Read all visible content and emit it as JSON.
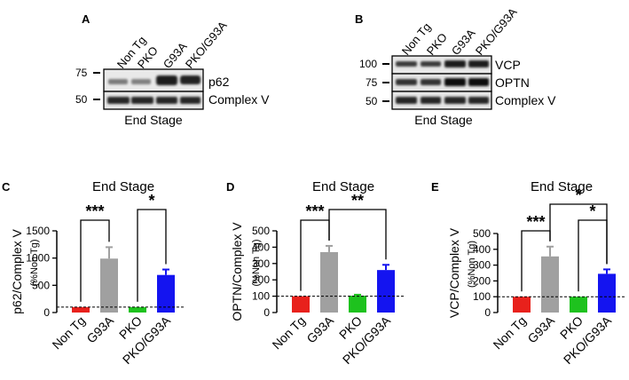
{
  "blots": {
    "A": {
      "label": "A",
      "lanes": [
        "Non Tg",
        "PKO",
        "G93A",
        "PKO/G93A"
      ],
      "markers": [
        "75",
        "50"
      ],
      "proteins": [
        "p62",
        "Complex V"
      ],
      "caption": "End Stage"
    },
    "B": {
      "label": "B",
      "lanes": [
        "Non Tg",
        "PKO",
        "G93A",
        "PKO/G93A"
      ],
      "markers": [
        "100",
        "75",
        "50"
      ],
      "proteins": [
        "VCP",
        "OPTN",
        "Complex V"
      ],
      "caption": "End Stage"
    }
  },
  "chart_data": [
    {
      "panel": "C",
      "type": "bar",
      "title": "End Stage",
      "ylabel": "p62/Complex V",
      "ysublabel": "(%Non Tg)",
      "categories": [
        "Non Tg",
        "G93A",
        "PKO",
        "PKO/G93A"
      ],
      "values": [
        100,
        990,
        100,
        690
      ],
      "errors": [
        0,
        210,
        0,
        100
      ],
      "colors": [
        "#e8211c",
        "#a0a0a0",
        "#1ec21e",
        "#1414f0"
      ],
      "yticks": [
        "0",
        "500",
        "1000",
        "1500"
      ],
      "ylim": [
        0,
        1500
      ],
      "baseline": 100,
      "significance": [
        {
          "from": 0,
          "to": 1,
          "text": "***"
        },
        {
          "from": 2,
          "to": 3,
          "text": "*"
        }
      ]
    },
    {
      "panel": "D",
      "type": "bar",
      "title": "End Stage",
      "ylabel": "OPTN/Complex V",
      "ysublabel": "(%Non Tg)",
      "categories": [
        "Non Tg",
        "G93A",
        "PKO",
        "PKO/G93A"
      ],
      "values": [
        100,
        370,
        103,
        260
      ],
      "errors": [
        0,
        38,
        6,
        32
      ],
      "colors": [
        "#e8211c",
        "#a0a0a0",
        "#1ec21e",
        "#1414f0"
      ],
      "yticks": [
        "0",
        "100",
        "200",
        "300",
        "400",
        "500"
      ],
      "ylim": [
        0,
        500
      ],
      "baseline": 100,
      "significance": [
        {
          "from": 0,
          "to": 1,
          "text": "***"
        },
        {
          "from": 1,
          "to": 3,
          "text": "**"
        }
      ]
    },
    {
      "panel": "E",
      "type": "bar",
      "title": "End Stage",
      "ylabel": "VCP/Complex V",
      "ysublabel": "(%Non Tg)",
      "categories": [
        "Non Tg",
        "G93A",
        "PKO",
        "PKO/G93A"
      ],
      "values": [
        100,
        355,
        100,
        245
      ],
      "errors": [
        0,
        62,
        0,
        28
      ],
      "colors": [
        "#e8211c",
        "#a0a0a0",
        "#1ec21e",
        "#1414f0"
      ],
      "yticks": [
        "0",
        "100",
        "200",
        "300",
        "400",
        "500"
      ],
      "ylim": [
        0,
        500
      ],
      "baseline": 100,
      "significance": [
        {
          "from": 0,
          "to": 1,
          "text": "***"
        },
        {
          "from": 2,
          "to": 3,
          "text": "*"
        },
        {
          "from": 1,
          "to": 3,
          "text": "*"
        }
      ]
    }
  ]
}
